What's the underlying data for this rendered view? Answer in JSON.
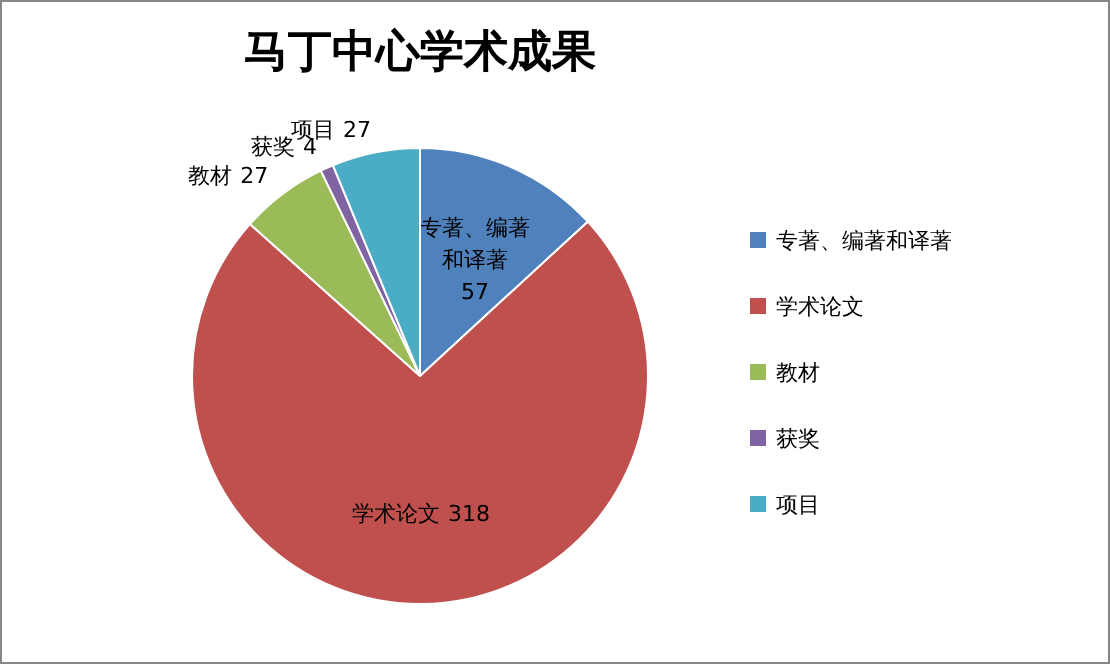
{
  "chart_data": {
    "type": "pie",
    "title": "马丁中心学术成果",
    "categories": [
      "专著、编著和译著",
      "学术论文",
      "教材",
      "获奖",
      "项目"
    ],
    "values": [
      57,
      318,
      27,
      4,
      27
    ],
    "colors": [
      "#4f81bd",
      "#c0504d",
      "#9bbb59",
      "#8064a2",
      "#4bacc6"
    ],
    "data_labels": true,
    "legend": "right"
  }
}
